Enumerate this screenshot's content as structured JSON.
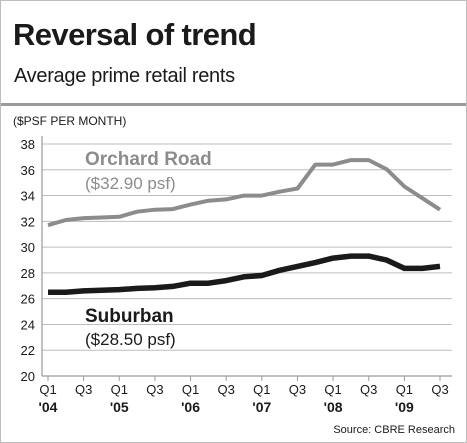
{
  "header": {
    "title": "Reversal of trend",
    "subtitle": "Average prime retail rents"
  },
  "chart_data": {
    "type": "line",
    "title": "Reversal of trend",
    "subtitle": "Average prime retail rents",
    "ylabel": "($PSF PER MONTH)",
    "xlabel": "",
    "ylim": [
      20,
      38
    ],
    "yticks": [
      20,
      22,
      24,
      26,
      28,
      30,
      32,
      34,
      36,
      38
    ],
    "grid": true,
    "x": [
      "Q1 '04",
      "Q2 '04",
      "Q3 '04",
      "Q4 '04",
      "Q1 '05",
      "Q2 '05",
      "Q3 '05",
      "Q4 '05",
      "Q1 '06",
      "Q2 '06",
      "Q3 '06",
      "Q4 '06",
      "Q1 '07",
      "Q2 '07",
      "Q3 '07",
      "Q4 '07",
      "Q1 '08",
      "Q2 '08",
      "Q3 '08",
      "Q4 '08",
      "Q1 '09",
      "Q2 '09",
      "Q3 '09"
    ],
    "x_tick_labels": [
      {
        "index": 0,
        "quarter": "Q1",
        "year": "'04"
      },
      {
        "index": 2,
        "quarter": "Q3",
        "year": ""
      },
      {
        "index": 4,
        "quarter": "Q1",
        "year": "'05"
      },
      {
        "index": 6,
        "quarter": "Q3",
        "year": ""
      },
      {
        "index": 8,
        "quarter": "Q1",
        "year": "'06"
      },
      {
        "index": 10,
        "quarter": "Q3",
        "year": ""
      },
      {
        "index": 12,
        "quarter": "Q1",
        "year": "'07"
      },
      {
        "index": 14,
        "quarter": "Q3",
        "year": ""
      },
      {
        "index": 16,
        "quarter": "Q1",
        "year": "'08"
      },
      {
        "index": 18,
        "quarter": "Q3",
        "year": ""
      },
      {
        "index": 20,
        "quarter": "Q1",
        "year": "'09"
      },
      {
        "index": 22,
        "quarter": "Q3",
        "year": ""
      }
    ],
    "series": [
      {
        "name": "Orchard Road",
        "label": "($32.90 psf)",
        "color": "#8c8c8c",
        "values": [
          31.7,
          32.1,
          32.25,
          32.3,
          32.35,
          32.75,
          32.9,
          32.95,
          33.3,
          33.6,
          33.7,
          34.0,
          34.0,
          34.3,
          34.55,
          36.4,
          36.4,
          36.75,
          36.75,
          36.05,
          34.7,
          33.8,
          32.9
        ]
      },
      {
        "name": "Suburban",
        "label": "($28.50 psf)",
        "color": "#1a1a1a",
        "values": [
          26.5,
          26.5,
          26.6,
          26.65,
          26.7,
          26.8,
          26.85,
          26.95,
          27.2,
          27.2,
          27.4,
          27.7,
          27.8,
          28.2,
          28.5,
          28.8,
          29.15,
          29.3,
          29.3,
          29.0,
          28.35,
          28.35,
          28.5
        ]
      }
    ],
    "source": "Source: CBRE Research"
  }
}
